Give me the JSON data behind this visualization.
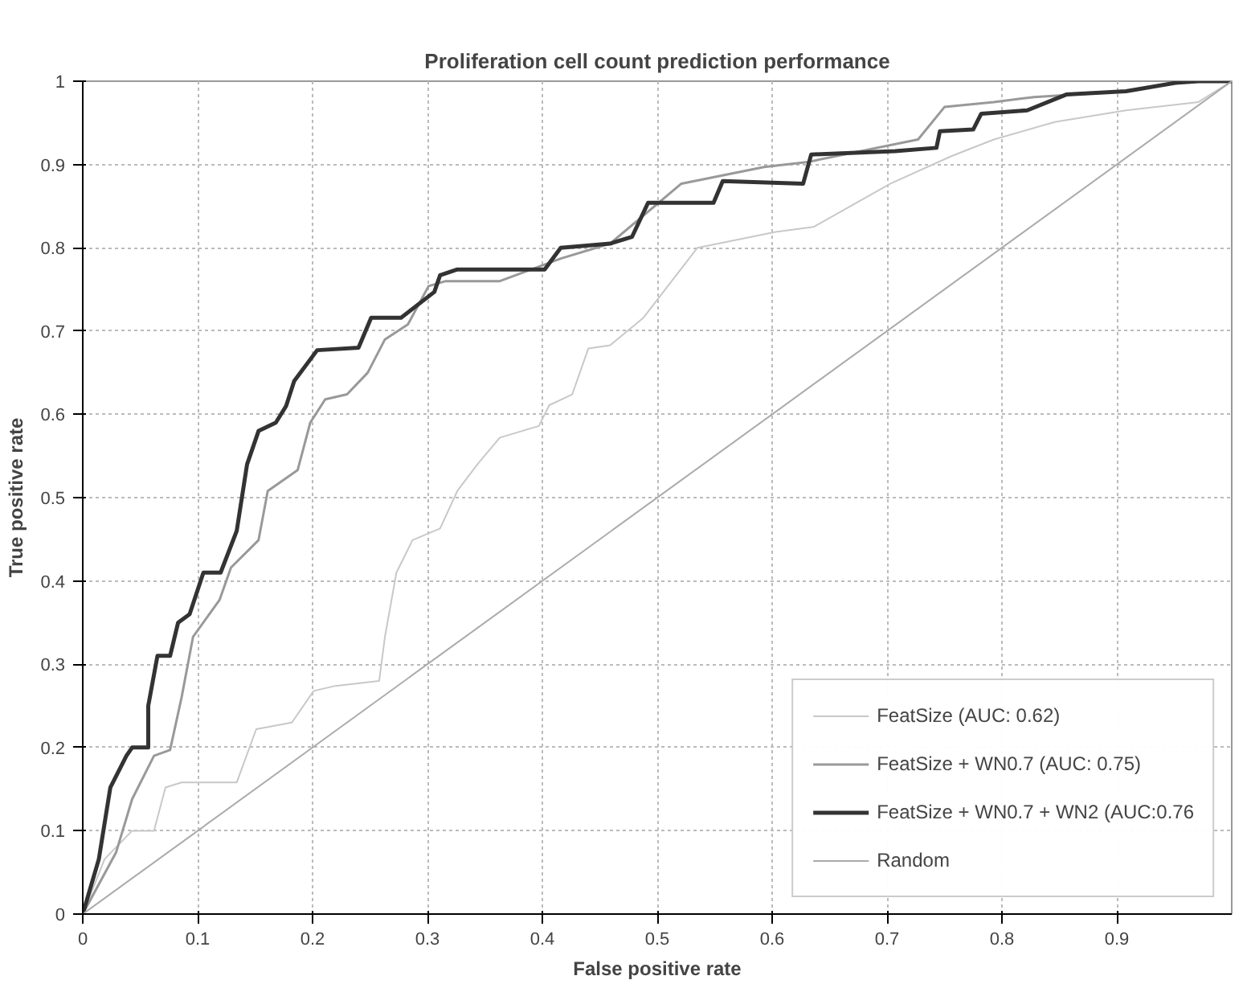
{
  "chart_data": {
    "type": "line",
    "title": "Proliferation cell count prediction performance",
    "xlabel": "False positive rate",
    "ylabel": "True positive rate",
    "xlim": [
      0,
      1
    ],
    "ylim": [
      0,
      1
    ],
    "xticks": [
      0,
      0.1,
      0.2,
      0.3,
      0.4,
      0.5,
      0.6,
      0.7,
      0.8,
      0.9
    ],
    "yticks": [
      0,
      0.1,
      0.2,
      0.3,
      0.4,
      0.5,
      0.6,
      0.7,
      0.8,
      0.9,
      1
    ],
    "grid": true,
    "legend": "bottom right",
    "line_style": "solid",
    "marker": "none",
    "series": [
      {
        "name": "FeatSize (AUC: 0.62)",
        "color": "#c8c8c8",
        "x": [
          0,
          0.019,
          0.043,
          0.062,
          0.072,
          0.086,
          0.134,
          0.151,
          0.182,
          0.201,
          0.22,
          0.258,
          0.263,
          0.273,
          0.287,
          0.311,
          0.326,
          0.344,
          0.363,
          0.397,
          0.406,
          0.426,
          0.44,
          0.459,
          0.488,
          0.535,
          0.603,
          0.636,
          0.703,
          0.756,
          0.793,
          0.846,
          0.908,
          0.971,
          1
        ],
        "values": [
          0,
          0.066,
          0.1,
          0.1,
          0.152,
          0.158,
          0.158,
          0.222,
          0.23,
          0.268,
          0.274,
          0.28,
          0.333,
          0.41,
          0.449,
          0.463,
          0.508,
          0.541,
          0.572,
          0.586,
          0.611,
          0.624,
          0.679,
          0.683,
          0.716,
          0.8,
          0.819,
          0.825,
          0.877,
          0.91,
          0.93,
          0.951,
          0.965,
          0.975,
          1
        ]
      },
      {
        "name": "FeatSize + WN0.7 (AUC: 0.75)",
        "color": "#999999",
        "x": [
          0,
          0.029,
          0.043,
          0.062,
          0.076,
          0.086,
          0.096,
          0.119,
          0.129,
          0.153,
          0.161,
          0.187,
          0.198,
          0.211,
          0.23,
          0.248,
          0.263,
          0.283,
          0.301,
          0.316,
          0.363,
          0.416,
          0.459,
          0.521,
          0.593,
          0.631,
          0.727,
          0.75,
          0.793,
          0.828,
          0.908,
          0.957,
          1
        ],
        "values": [
          0,
          0.074,
          0.138,
          0.19,
          0.197,
          0.26,
          0.333,
          0.377,
          0.416,
          0.449,
          0.508,
          0.533,
          0.59,
          0.618,
          0.624,
          0.65,
          0.69,
          0.708,
          0.754,
          0.76,
          0.76,
          0.787,
          0.805,
          0.877,
          0.897,
          0.903,
          0.93,
          0.969,
          0.975,
          0.981,
          0.988,
          1,
          1
        ]
      },
      {
        "name": "FeatSize + WN0.7 + WN2 (AUC:0.76",
        "color": "#333333",
        "x": [
          0,
          0.014,
          0.024,
          0.038,
          0.043,
          0.057,
          0.057,
          0.065,
          0.076,
          0.083,
          0.093,
          0.105,
          0.12,
          0.134,
          0.143,
          0.153,
          0.168,
          0.177,
          0.184,
          0.204,
          0.24,
          0.251,
          0.277,
          0.306,
          0.311,
          0.326,
          0.402,
          0.416,
          0.459,
          0.478,
          0.492,
          0.549,
          0.557,
          0.627,
          0.634,
          0.707,
          0.743,
          0.746,
          0.775,
          0.782,
          0.822,
          0.856,
          0.908,
          0.951,
          0.971,
          1
        ],
        "values": [
          0,
          0.066,
          0.152,
          0.19,
          0.2,
          0.2,
          0.25,
          0.31,
          0.31,
          0.35,
          0.36,
          0.41,
          0.41,
          0.46,
          0.54,
          0.58,
          0.59,
          0.61,
          0.64,
          0.677,
          0.68,
          0.716,
          0.716,
          0.747,
          0.767,
          0.774,
          0.774,
          0.8,
          0.805,
          0.813,
          0.854,
          0.854,
          0.88,
          0.877,
          0.912,
          0.916,
          0.92,
          0.94,
          0.942,
          0.961,
          0.965,
          0.984,
          0.988,
          0.998,
          1,
          1
        ]
      },
      {
        "name": "Random",
        "color": "#aaaaaa",
        "x": [
          0,
          1
        ],
        "values": [
          0,
          1
        ]
      }
    ]
  }
}
